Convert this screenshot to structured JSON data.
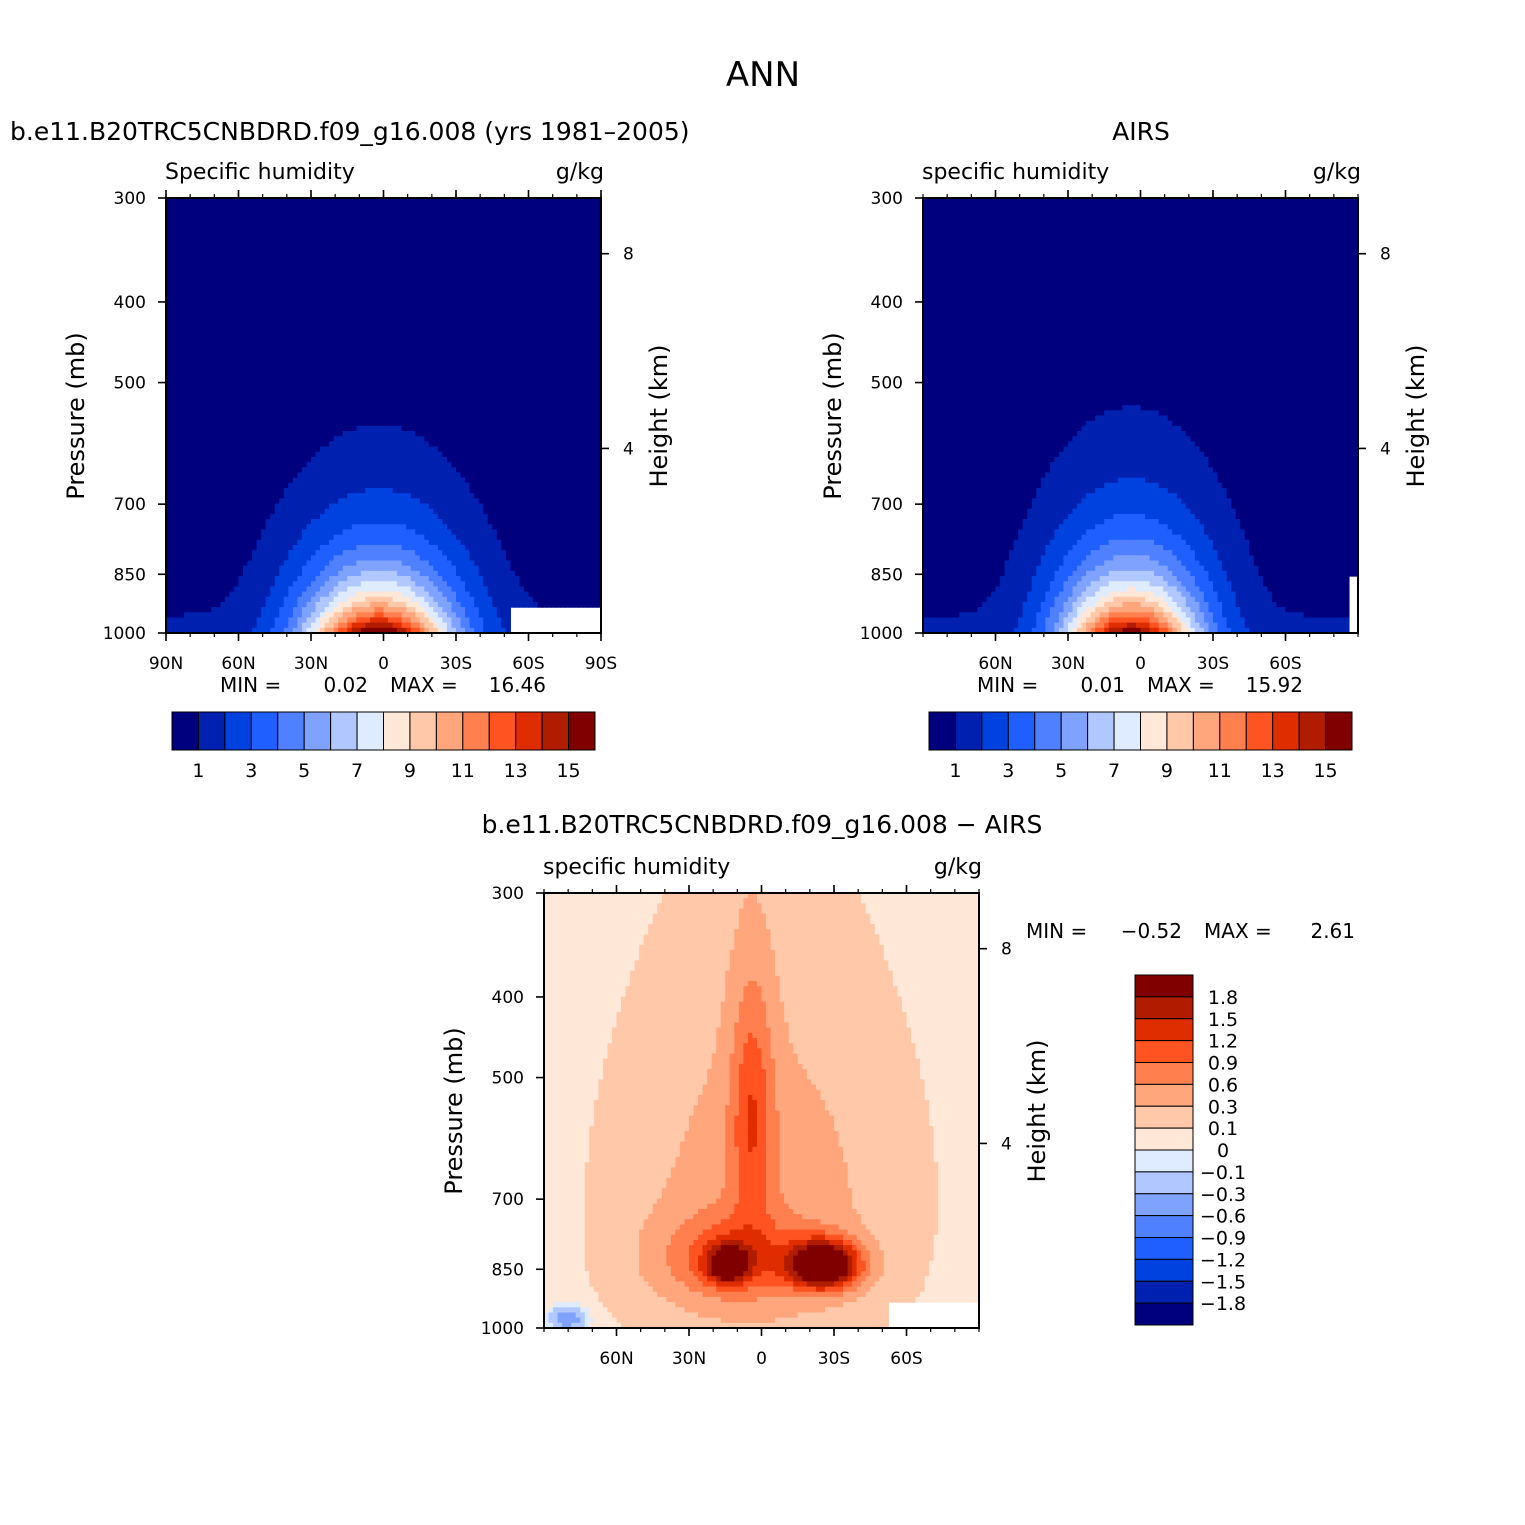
{
  "figure": {
    "title": "ANN"
  },
  "colors": {
    "humidity": [
      "#00007f",
      "#0021b0",
      "#0042e0",
      "#1f5fff",
      "#4f80ff",
      "#7fa2ff",
      "#b0c8ff",
      "#dfebff",
      "#ffe8d8",
      "#ffc8a8",
      "#ffa67d",
      "#ff7f4f",
      "#ff5321",
      "#e02d00",
      "#b01c00",
      "#800000"
    ],
    "difference": [
      "#00007f",
      "#0021b0",
      "#0042e0",
      "#1f5fff",
      "#4f80ff",
      "#7fa2ff",
      "#b0c8ff",
      "#dfebff",
      "#ffe8d8",
      "#ffc8a8",
      "#ffa67d",
      "#ff7f4f",
      "#ff5321",
      "#e02d00",
      "#b01c00",
      "#800000"
    ]
  },
  "chart_data": [
    {
      "type": "heatmap",
      "panel": "model",
      "title": "b.e11.B20TRC5CNBDRD.f09_g16.008 (yrs 1981–2005)",
      "variable": "Specific humidity",
      "units": "g/kg",
      "xticks": [
        "90N",
        "60N",
        "30N",
        "0",
        "30S",
        "60S",
        "90S"
      ],
      "xtick_lat": [
        90,
        60,
        30,
        0,
        -30,
        -60,
        -90
      ],
      "xlim": [
        90,
        -90
      ],
      "ylabel": "Pressure (mb)",
      "yticks": [
        "300",
        "400",
        "500",
        "700",
        "850",
        "1000"
      ],
      "ytick_p": [
        300,
        400,
        500,
        700,
        850,
        1000
      ],
      "ylim": [
        300,
        1000
      ],
      "y2label": "Height (km)",
      "y2ticks": [
        "8",
        "4"
      ],
      "y2tick_p": [
        350,
        600
      ],
      "min_label": "MIN =",
      "min": "0.02",
      "max_label": "MAX =",
      "max": "16.46",
      "levels": [
        1,
        2,
        3,
        4,
        5,
        6,
        7,
        8,
        9,
        10,
        11,
        12,
        13,
        14,
        15
      ],
      "colorbar_labels": [
        "1",
        "3",
        "5",
        "7",
        "9",
        "11",
        "13",
        "15"
      ],
      "field": {
        "peak": 16.46,
        "base": 0.02,
        "center_lat": 2,
        "lat_width": 30,
        "p_scale": 2.05,
        "missing": {
          "lat": [
            -52,
            -90
          ],
          "p": [
            925,
            1000
          ]
        }
      }
    },
    {
      "type": "heatmap",
      "panel": "obs",
      "title": "AIRS",
      "variable": "specific humidity",
      "units": "g/kg",
      "xticks": [
        "60N",
        "30N",
        "0",
        "30S",
        "60S"
      ],
      "xtick_lat": [
        60,
        30,
        0,
        -30,
        -60
      ],
      "xlim": [
        90,
        -90
      ],
      "ylabel": "Pressure (mb)",
      "yticks": [
        "300",
        "400",
        "500",
        "700",
        "850",
        "1000"
      ],
      "ytick_p": [
        300,
        400,
        500,
        700,
        850,
        1000
      ],
      "ylim": [
        300,
        1000
      ],
      "y2label": "Height (km)",
      "y2ticks": [
        "8",
        "4"
      ],
      "y2tick_p": [
        350,
        600
      ],
      "min_label": "MIN =",
      "min": "0.01",
      "max_label": "MAX =",
      "max": "15.92",
      "levels": [
        1,
        2,
        3,
        4,
        5,
        6,
        7,
        8,
        9,
        10,
        11,
        12,
        13,
        14,
        15
      ],
      "colorbar_labels": [
        "1",
        "3",
        "5",
        "7",
        "9",
        "11",
        "13",
        "15"
      ],
      "field": {
        "peak": 15.92,
        "base": 0.01,
        "center_lat": 4,
        "lat_width": 28,
        "p_scale": 1.9,
        "missing": {
          "lat": [
            -87,
            -90
          ],
          "p": [
            850,
            1000
          ]
        }
      }
    },
    {
      "type": "heatmap",
      "panel": "difference",
      "title": "b.e11.B20TRC5CNBDRD.f09_g16.008 − AIRS",
      "variable": "specific humidity",
      "units": "g/kg",
      "xticks": [
        "60N",
        "30N",
        "0",
        "30S",
        "60S"
      ],
      "xtick_lat": [
        60,
        30,
        0,
        -30,
        -60
      ],
      "xlim": [
        90,
        -90
      ],
      "ylabel": "Pressure (mb)",
      "yticks": [
        "300",
        "400",
        "500",
        "700",
        "850",
        "1000"
      ],
      "ytick_p": [
        300,
        400,
        500,
        700,
        850,
        1000
      ],
      "ylim": [
        300,
        1000
      ],
      "y2label": "Height (km)",
      "y2ticks": [
        "8",
        "4"
      ],
      "y2tick_p": [
        350,
        600
      ],
      "min_label": "MIN =",
      "min": "−0.52",
      "max_label": "MAX =",
      "max": "2.61",
      "levels": [
        -1.8,
        -1.5,
        -1.2,
        -0.9,
        -0.6,
        -0.3,
        -0.1,
        0,
        0.1,
        0.3,
        0.6,
        0.9,
        1.2,
        1.5,
        1.8
      ],
      "colorbar_labels": [
        "1.8",
        "1.5",
        "1.2",
        "0.9",
        "0.6",
        "0.3",
        "0.1",
        "0",
        "−0.1",
        "−0.3",
        "−0.6",
        "−0.9",
        "−1.2",
        "−1.5",
        "−1.8"
      ],
      "field": {
        "base": 0.05,
        "blobs": [
          {
            "lat": -26,
            "p": 840,
            "slat": 14,
            "sp": 55,
            "amp": 2.61
          },
          {
            "lat": 14,
            "p": 840,
            "slat": 8,
            "sp": 40,
            "amp": 1.6
          },
          {
            "lat": 12,
            "p": 825,
            "slat": 28,
            "sp": 95,
            "amp": 0.9
          },
          {
            "lat": 4,
            "p": 550,
            "slat": 9,
            "sp": 190,
            "amp": 0.85
          },
          {
            "lat": 0,
            "p": 700,
            "slat": 50,
            "sp": 330,
            "amp": 0.42
          },
          {
            "lat": 80,
            "p": 975,
            "slat": 7,
            "sp": 30,
            "amp": -0.55
          }
        ],
        "missing": {
          "lat": [
            -52,
            -90
          ],
          "p": [
            925,
            1000
          ]
        }
      }
    }
  ]
}
